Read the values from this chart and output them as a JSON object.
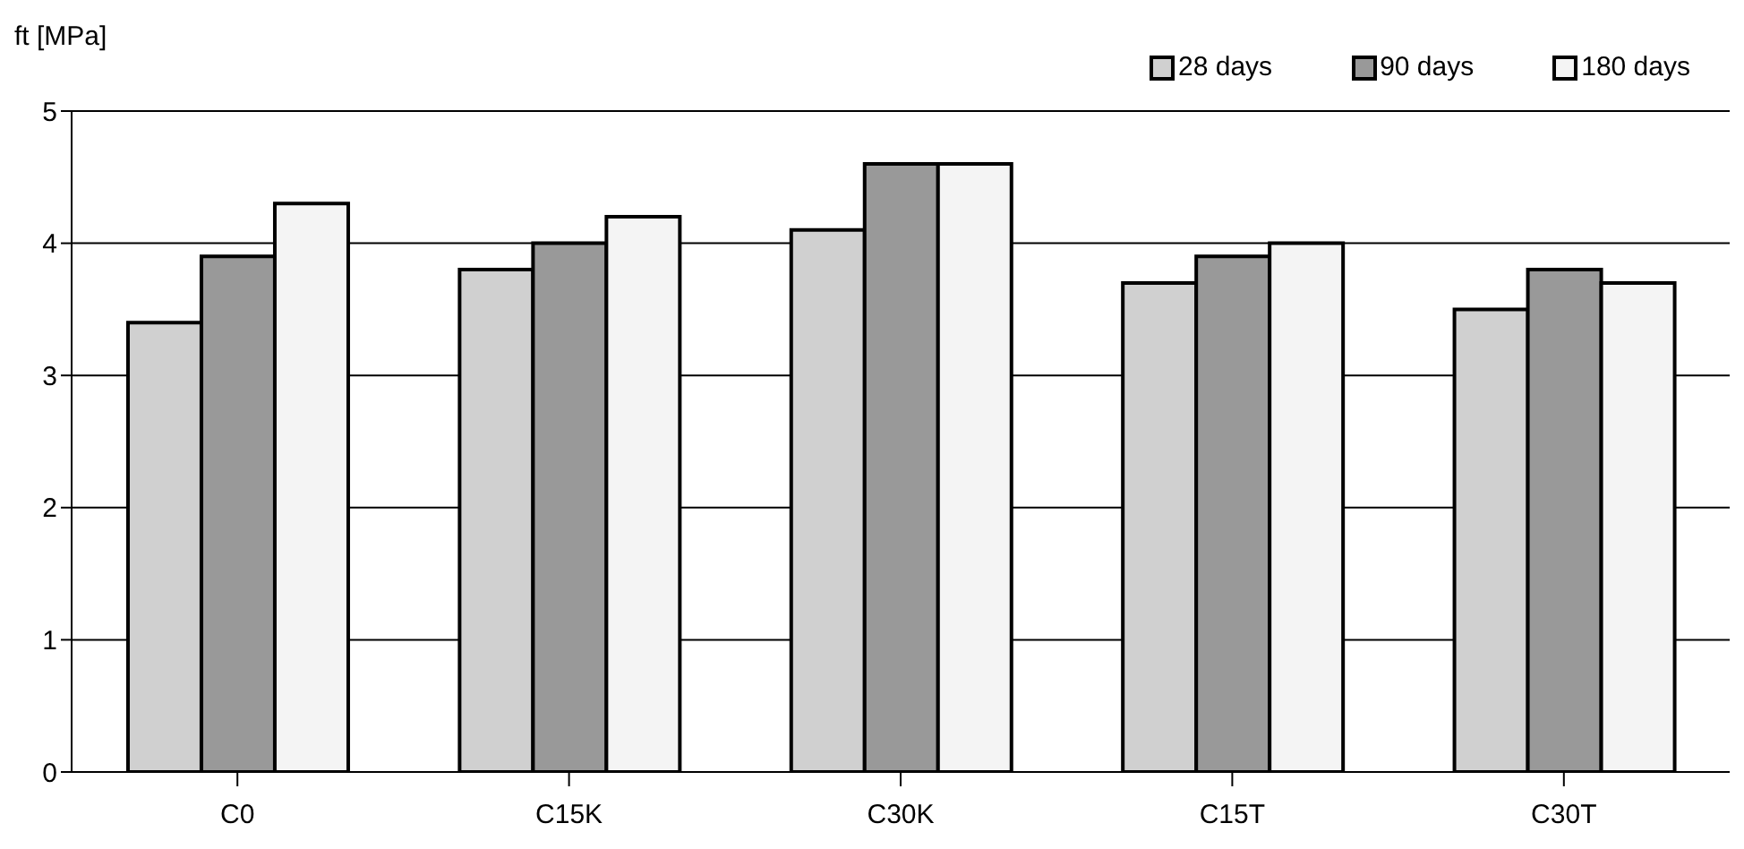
{
  "chart_data": {
    "type": "bar",
    "ylabel": "ft [MPa]",
    "categories": [
      "C0",
      "C15K",
      "C30K",
      "C15T",
      "C30T"
    ],
    "series": [
      {
        "name": "28 days",
        "color": "#d0d0d0",
        "values": [
          3.4,
          3.8,
          4.1,
          3.7,
          3.5
        ]
      },
      {
        "name": "90 days",
        "color": "#999999",
        "values": [
          3.9,
          4.0,
          4.6,
          3.9,
          3.8
        ]
      },
      {
        "name": "180 days",
        "color": "#f4f4f4",
        "values": [
          4.3,
          4.2,
          4.6,
          4.0,
          3.7
        ]
      }
    ],
    "ylim": [
      0,
      5
    ],
    "yticks": [
      0,
      1,
      2,
      3,
      4,
      5
    ],
    "grid": "y",
    "legend": "top right"
  }
}
